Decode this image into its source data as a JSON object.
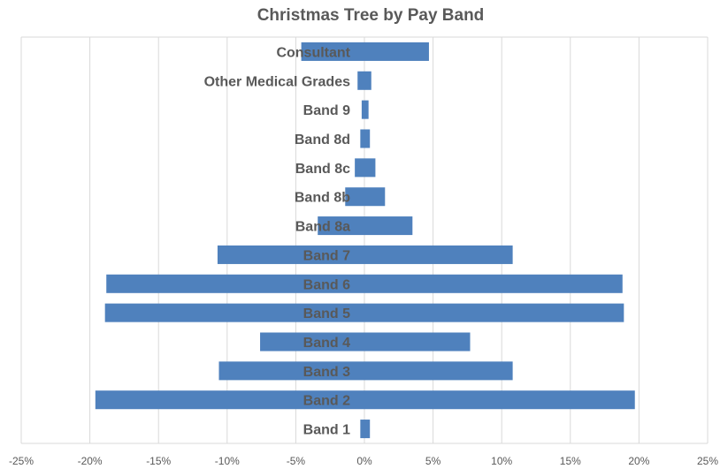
{
  "chart_data": {
    "type": "bar",
    "orientation": "horizontal",
    "title": "Christmas Tree by Pay Band",
    "xlabel": "",
    "ylabel": "",
    "categories": [
      "Consultant",
      "Other Medical Grades",
      "Band 9",
      "Band 8d",
      "Band 8c",
      "Band 8b",
      "Band 8a",
      "Band 7",
      "Band 6",
      "Band 5",
      "Band 4",
      "Band 3",
      "Band 2",
      "Band 1"
    ],
    "series": [
      {
        "values": [
          -4.6,
          -0.5,
          -0.2,
          -0.3,
          -0.7,
          -1.4,
          -3.4,
          -10.7,
          -18.8,
          -18.9,
          -7.6,
          -10.6,
          -19.6,
          -0.3
        ]
      },
      {
        "values": [
          4.7,
          0.5,
          0.3,
          0.4,
          0.8,
          1.5,
          3.5,
          10.8,
          18.8,
          18.9,
          7.7,
          10.8,
          19.7,
          0.4
        ]
      }
    ],
    "xlim": [
      -25,
      25
    ],
    "xticks": [
      -25,
      -20,
      -15,
      -10,
      -5,
      0,
      5,
      10,
      15,
      20,
      25
    ],
    "xtick_labels": [
      "-25%",
      "-20%",
      "-15%",
      "-10%",
      "-5%",
      "0%",
      "5%",
      "10%",
      "15%",
      "20%",
      "25%"
    ],
    "grid": true,
    "legend": "none",
    "bar_color": "#4f81bd"
  }
}
